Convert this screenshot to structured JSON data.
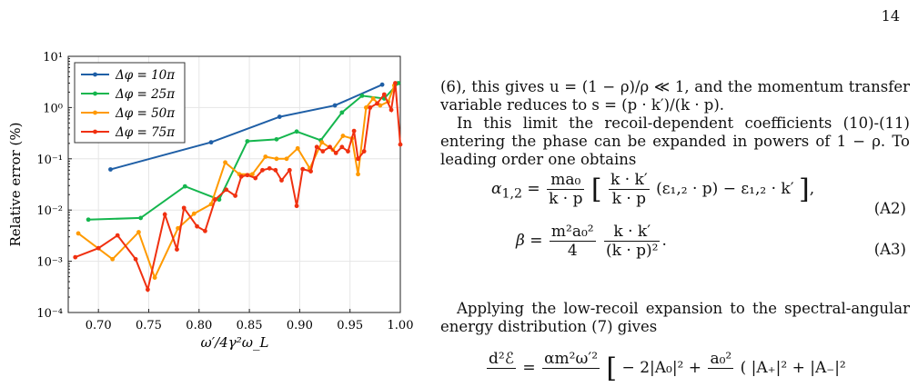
{
  "page_number": "14",
  "chart_data": {
    "type": "line",
    "xlabel": "ω′/4γ²ω_L",
    "ylabel": "Relative error (%)",
    "xlim": [
      0.67,
      1.0
    ],
    "ylim_log10": [
      -4,
      1
    ],
    "log_y": true,
    "grid": true,
    "legend_position": "top-left",
    "x_ticks": [
      "0.70",
      "0.75",
      "0.80",
      "0.85",
      "0.90",
      "0.95",
      "1.00"
    ],
    "y_ticks": [
      "10⁻⁴",
      "10⁻³",
      "10⁻²",
      "10⁻¹",
      "10⁰",
      "10¹"
    ],
    "series": [
      {
        "name": "Δφ = 10π",
        "color": "#1f5fa6",
        "x": [
          0.712,
          0.812,
          0.88,
          0.935,
          0.982
        ],
        "y": [
          0.062,
          0.21,
          0.66,
          1.1,
          2.8
        ]
      },
      {
        "name": "Δφ = 25π",
        "color": "#15b64e",
        "x": [
          0.69,
          0.742,
          0.786,
          0.82,
          0.848,
          0.877,
          0.897,
          0.921,
          0.942,
          0.962,
          0.984,
          0.998
        ],
        "y": [
          0.0065,
          0.007,
          0.029,
          0.016,
          0.22,
          0.24,
          0.34,
          0.23,
          0.8,
          1.7,
          1.5,
          3.0
        ]
      },
      {
        "name": "Δφ = 50π",
        "color": "#ff9a00",
        "x": [
          0.68,
          0.714,
          0.74,
          0.756,
          0.779,
          0.795,
          0.812,
          0.826,
          0.84,
          0.853,
          0.866,
          0.877,
          0.887,
          0.898,
          0.91,
          0.922,
          0.933,
          0.943,
          0.952,
          0.958,
          0.966,
          0.973,
          0.98,
          0.988,
          0.994
        ],
        "y": [
          0.0035,
          0.0011,
          0.0037,
          0.00048,
          0.0044,
          0.0085,
          0.013,
          0.085,
          0.05,
          0.05,
          0.11,
          0.1,
          0.1,
          0.16,
          0.065,
          0.21,
          0.15,
          0.28,
          0.25,
          0.05,
          1.0,
          1.5,
          1.1,
          1.3,
          2.7
        ]
      },
      {
        "name": "Δφ = 75π",
        "color": "#f03010",
        "x": [
          0.677,
          0.7,
          0.719,
          0.737,
          0.749,
          0.766,
          0.778,
          0.785,
          0.798,
          0.806,
          0.816,
          0.827,
          0.836,
          0.842,
          0.848,
          0.856,
          0.863,
          0.87,
          0.876,
          0.882,
          0.89,
          0.897,
          0.903,
          0.911,
          0.917,
          0.923,
          0.93,
          0.936,
          0.942,
          0.948,
          0.954,
          0.958,
          0.964,
          0.97,
          0.977,
          0.984,
          0.991,
          0.995,
          1.0
        ],
        "y": [
          0.0012,
          0.0018,
          0.0032,
          0.0011,
          0.00028,
          0.0082,
          0.0017,
          0.011,
          0.0048,
          0.0039,
          0.016,
          0.025,
          0.019,
          0.045,
          0.048,
          0.042,
          0.06,
          0.065,
          0.06,
          0.038,
          0.06,
          0.012,
          0.063,
          0.057,
          0.17,
          0.14,
          0.17,
          0.13,
          0.17,
          0.14,
          0.35,
          0.1,
          0.14,
          1.0,
          1.2,
          1.8,
          0.9,
          3.0,
          0.19
        ]
      }
    ]
  },
  "text": {
    "para1": "(6), this gives u = (1 − ρ)/ρ ≪ 1, and the momentum transfer variable reduces to s = (p · k′)/(k · p).",
    "para2": "In this limit the recoil-dependent coefficients (10)-(11) entering the phase can be expanded in powers of 1 − ρ. To leading order one obtains",
    "para3": "Applying the low-recoil expansion to the spectral-angular energy distribution (7) gives"
  },
  "equations": {
    "a2": {
      "lhs": "α",
      "lhs_sub": "1,2",
      "num1": "ma₀",
      "den1": "k · p",
      "num2": "k · k′",
      "den2": "k · p",
      "body": "(ε₁,₂ · p) − ε₁,₂ · k′",
      "label": "(A2)"
    },
    "a3": {
      "lhs": "β",
      "num1": "m²a₀²",
      "den1": "4",
      "num2": "k · k′",
      "den2": "(k · p)²",
      "label": "(A3)"
    },
    "partial": {
      "num_lhs": "d²ℰ",
      "num_rhs": "αm²ω′²",
      "term1": "− 2|A₀|² +",
      "frac_num": "a₀²",
      "term2": "( |A₊|² + |A₋|²"
    }
  }
}
